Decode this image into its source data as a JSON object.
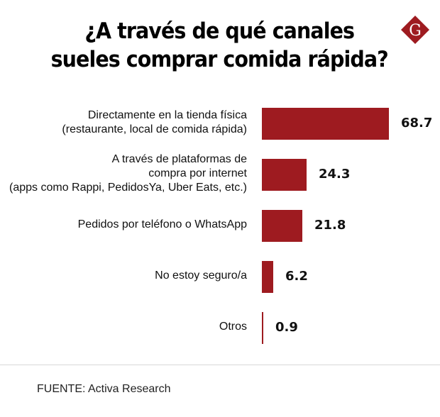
{
  "header": {
    "title_lines": [
      "¿A través de qué canales",
      "sueles comprar comida rápida?"
    ],
    "logo_letter": "G",
    "brand_color": "#9e1b20"
  },
  "chart_data": {
    "type": "bar",
    "orientation": "horizontal",
    "title": "¿A través de qué canales sueles comprar comida rápida?",
    "xlabel": "",
    "ylabel": "",
    "grid": false,
    "legend": "none",
    "xlim": [
      0,
      70
    ],
    "categories": [
      [
        "Directamente en la tienda física",
        "(restaurante, local de comida rápida)"
      ],
      [
        "A través de plataformas de",
        "compra por internet",
        "(apps como Rappi, PedidosYa, Uber Eats, etc.)"
      ],
      [
        "Pedidos por teléfono o WhatsApp"
      ],
      [
        "No estoy seguro/a"
      ],
      [
        "Otros"
      ]
    ],
    "values": [
      68.7,
      24.3,
      21.8,
      6.2,
      0.9
    ],
    "value_labels": [
      "68.7",
      "24.3",
      "21.8",
      "6.2",
      "0.9"
    ],
    "bar_color": "#9e1b20"
  },
  "footer": {
    "source": "FUENTE: Activa Research"
  }
}
